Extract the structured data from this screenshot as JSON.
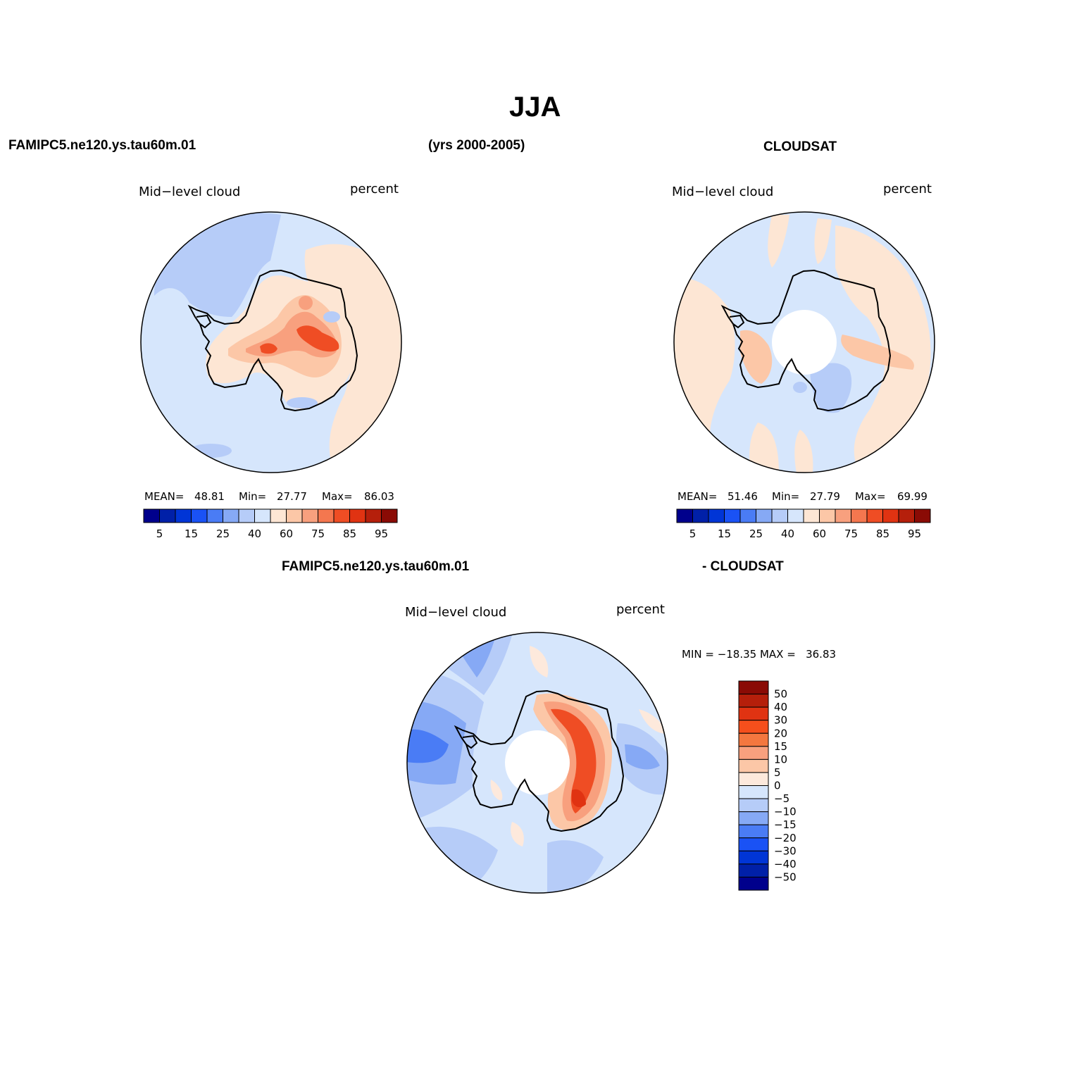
{
  "figure": {
    "title": "JJA",
    "case_name": "FAMIPC5.ne120.ys.tau60m.01",
    "years": "(yrs 2000-2005)",
    "obs_name": "CLOUDSAT",
    "diff_left": "FAMIPC5.ne120.ys.tau60m.01",
    "diff_right": "- CLOUDSAT"
  },
  "panels": [
    {
      "variable": "Mid−level cloud",
      "units": "percent",
      "mean_label": "MEAN=",
      "mean": "48.81",
      "min_label": "Min=",
      "min": "27.77",
      "max_label": "Max=",
      "max": "86.03"
    },
    {
      "variable": "Mid−level cloud",
      "units": "percent",
      "mean_label": "MEAN=",
      "mean": "51.46",
      "min_label": "Min=",
      "min": "27.79",
      "max_label": "Max=",
      "max": "69.99"
    },
    {
      "variable": "Mid−level cloud",
      "units": "percent",
      "minmax": "MIN = −18.35 MAX =   36.83"
    }
  ],
  "colorbar_abs": {
    "ticks": [
      "5",
      "15",
      "25",
      "40",
      "60",
      "75",
      "85",
      "95"
    ],
    "colors": [
      "#00008c",
      "#0020a8",
      "#0035d6",
      "#1a52f5",
      "#4a7cf5",
      "#86a9f5",
      "#b6ccf8",
      "#d6e6fc",
      "#fde6d4",
      "#fcc7a7",
      "#f8a07e",
      "#f4774f",
      "#ef4d24",
      "#e03312",
      "#b51f0b",
      "#8a0b05"
    ]
  },
  "colorbar_diff": {
    "ticks": [
      "50",
      "40",
      "30",
      "20",
      "15",
      "10",
      "5",
      "0",
      "−5",
      "−10",
      "−15",
      "−20",
      "−30",
      "−40",
      "−50"
    ],
    "colors": [
      "#8a0b05",
      "#b51f0b",
      "#e03312",
      "#f54f1c",
      "#f4773f",
      "#f8a07e",
      "#fcc7a7",
      "#fde9dc",
      "#d6e6fc",
      "#b6ccf8",
      "#86a9f5",
      "#4a7cf5",
      "#1a52f5",
      "#0035d6",
      "#0020a8",
      "#00008c"
    ]
  },
  "map_colors": {
    "sea_light": "#d6e6fc",
    "light_blue": "#b6ccf8",
    "mid_blue": "#86a9f5",
    "blue": "#4a7cf5",
    "peach": "#fde6d4",
    "salmon": "#fcc7a7",
    "orange": "#f8a07e",
    "red": "#ef4d24",
    "deep_red": "#e03312"
  }
}
